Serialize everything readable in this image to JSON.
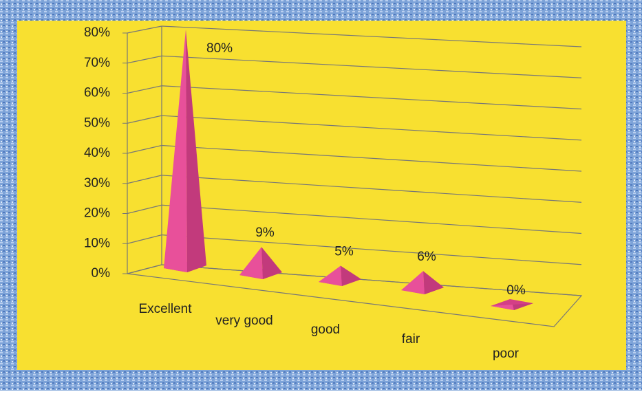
{
  "chart_data": {
    "type": "pyramid",
    "categories": [
      "Excellent",
      "very good",
      "good",
      "fair",
      "poor"
    ],
    "values": [
      80,
      9,
      5,
      6,
      0
    ],
    "value_labels": [
      "80%",
      "9%",
      "5%",
      "6%",
      "0%"
    ],
    "color": "#e8509a",
    "ylim": [
      0,
      80
    ],
    "yticks": [
      {
        "value": 0,
        "label": "0%"
      },
      {
        "value": 10,
        "label": "10%"
      },
      {
        "value": 20,
        "label": "20%"
      },
      {
        "value": 30,
        "label": "30%"
      },
      {
        "value": 40,
        "label": "40%"
      },
      {
        "value": 50,
        "label": "50%"
      },
      {
        "value": 60,
        "label": "60%"
      },
      {
        "value": 70,
        "label": "70%"
      },
      {
        "value": 80,
        "label": "80%"
      }
    ],
    "grid": true
  }
}
